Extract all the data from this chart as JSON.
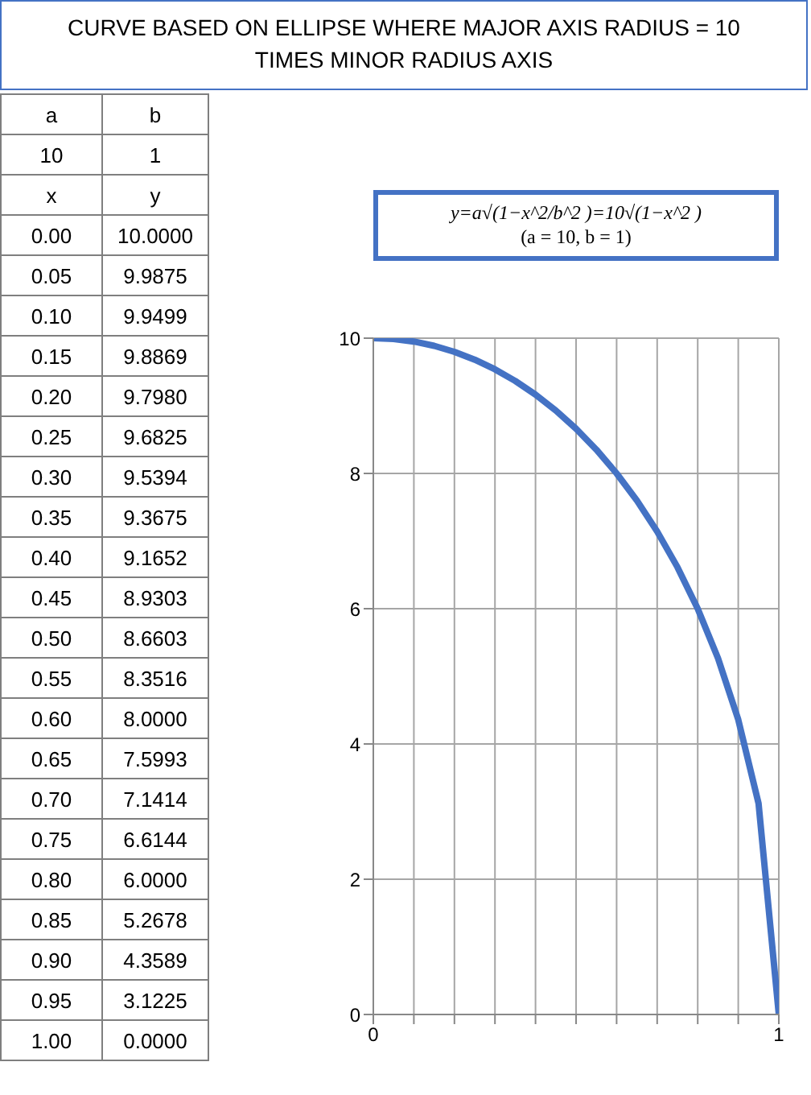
{
  "chart_data": {
    "type": "line",
    "title": "CURVE BASED ON ELLIPSE WHERE MAJOR AXIS RADIUS = 10 TIMES MINOR RADIUS AXIS",
    "subtitle": "y=a√(1−x^2/b^2 )=10√(1−x^2 )\n(a = 10, b = 1)",
    "annotations": [
      "a",
      "b",
      "10",
      "1",
      "x",
      "y",
      "0.00",
      "0.05",
      "0.10",
      "0.15",
      "0.20",
      "0.25",
      "0.30",
      "0.35",
      "0.40",
      "0.45",
      "0.50",
      "0.55",
      "0.60",
      "0.65",
      "0.70",
      "0.75",
      "0.80",
      "0.85",
      "0.90",
      "0.95",
      "1.00"
    ],
    "x": [
      0,
      0.05,
      0.1,
      0.15,
      0.2,
      0.25,
      0.3,
      0.35,
      0.4,
      0.45,
      0.5,
      0.55,
      0.6,
      0.65,
      0.7,
      0.75,
      0.8,
      0.85,
      0.9,
      0.95,
      1
    ],
    "series": [
      {
        "color": "#4472c4",
        "values": [
          10,
          9.9875,
          9.9499,
          9.8869,
          9.798,
          9.6825,
          9.5394,
          9.3675,
          9.1652,
          8.9303,
          8.6603,
          8.3516,
          8,
          7.5993,
          7.1414,
          6.6144,
          6,
          5.2678,
          4.3589,
          3.1225,
          0
        ]
      }
    ],
    "value_labels": [
      "10.0000",
      "9.9875",
      "9.9499",
      "9.8869",
      "9.7980",
      "9.6825",
      "9.5394",
      "9.3675",
      "9.1652",
      "8.9303",
      "8.6603",
      "8.3516",
      "8.0000",
      "7.5993",
      "7.1414",
      "6.6144",
      "6.0000",
      "5.2678",
      "4.3589",
      "3.1225",
      "0.0000"
    ],
    "xlim": [
      0,
      1
    ],
    "xticks": [
      0,
      {
        "value": 0.1,
        "label": null
      },
      {
        "value": 0.2,
        "label": null
      },
      {
        "value": 0.3,
        "label": null
      },
      {
        "value": 0.4,
        "label": null
      },
      {
        "value": 0.5,
        "label": null
      },
      {
        "value": 0.6,
        "label": null
      },
      {
        "value": 0.7,
        "label": null
      },
      {
        "value": 0.8,
        "label": null
      },
      {
        "value": 0.9,
        "label": null
      },
      1
    ],
    "ylim": [
      0,
      10
    ],
    "yticks": [
      0,
      2,
      4,
      6,
      8,
      10
    ],
    "grid": true,
    "marker": "none",
    "line_style": "solid"
  }
}
